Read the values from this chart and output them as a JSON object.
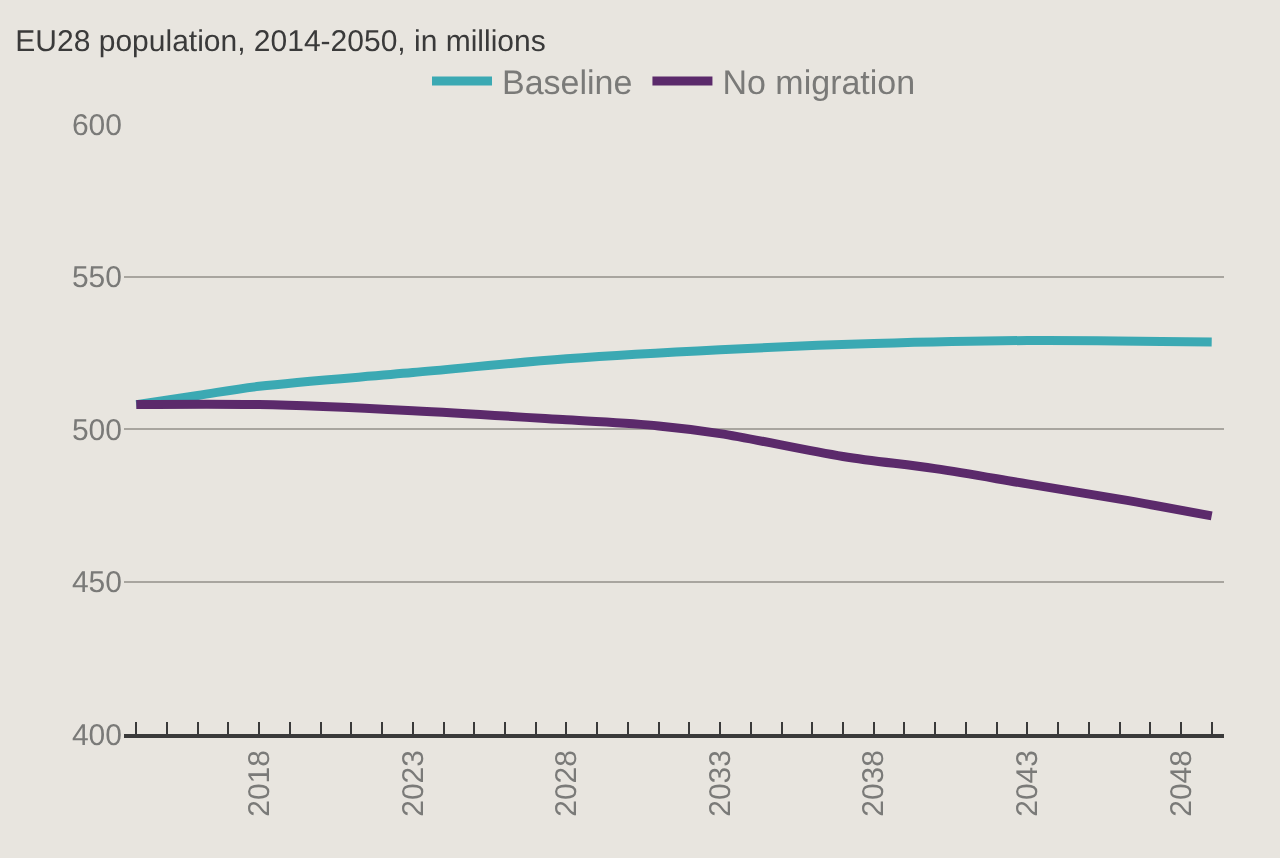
{
  "chart_data": {
    "type": "line",
    "title": "EU28 population, 2014-2050, in millions",
    "series": [
      {
        "name": "Baseline",
        "color": "#3ba9b3",
        "x": [
          2014,
          2016,
          2018,
          2023,
          2028,
          2033,
          2038,
          2043,
          2049
        ],
        "values": [
          508,
          511,
          514,
          518.5,
          523,
          526,
          528,
          529,
          528.5
        ]
      },
      {
        "name": "No migration",
        "color": "#5b2a6b",
        "x": [
          2014,
          2018,
          2023,
          2028,
          2031,
          2033,
          2037,
          2040,
          2043,
          2046,
          2049
        ],
        "values": [
          508,
          508,
          506,
          503,
          501,
          498.5,
          491,
          487,
          482,
          477,
          471.5
        ]
      }
    ],
    "xlim": [
      2013.6,
      2049.4
    ],
    "xticks": [
      2018,
      2023,
      2028,
      2033,
      2038,
      2043,
      2048
    ],
    "ylim": [
      400,
      600
    ],
    "yticks": [
      400,
      450,
      500,
      550,
      600
    ],
    "grid": "y",
    "legend": "top",
    "marker": "none",
    "line_style": "solid"
  }
}
